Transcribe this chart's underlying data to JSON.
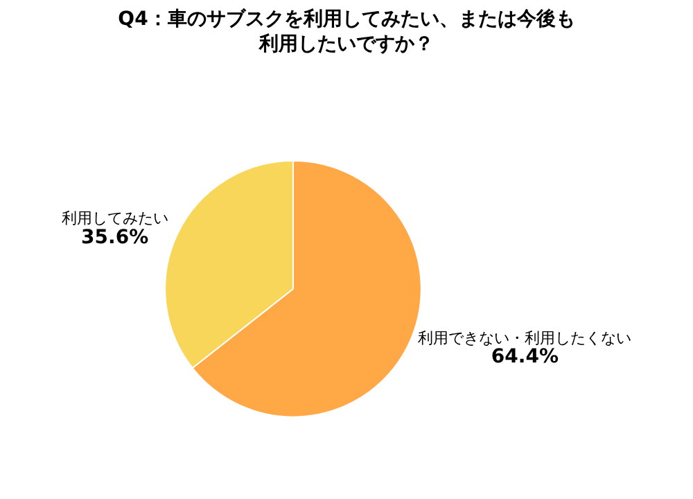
{
  "chart_data": {
    "type": "pie",
    "title": "Q4：車のサブスクを利用してみたい、または今後も利用したいですか？",
    "categories": [
      "利用できない・利用したくない",
      "利用してみたい"
    ],
    "values": [
      64.4,
      35.6
    ],
    "value_labels": [
      "64.4%",
      "35.6%"
    ],
    "colors": [
      "#ffa845",
      "#f7d65a"
    ],
    "legend": false
  }
}
